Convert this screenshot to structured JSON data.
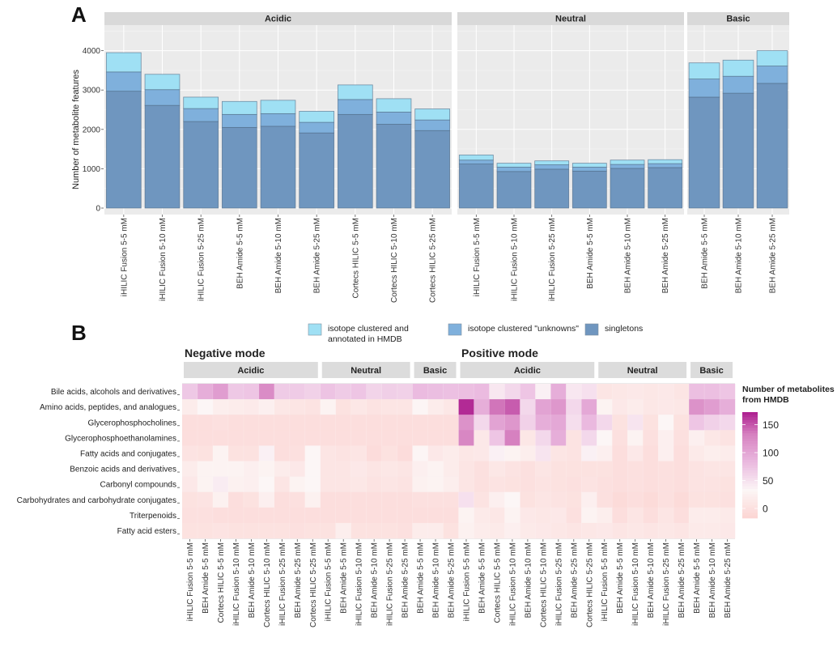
{
  "figure": {
    "panel_a_label": "A",
    "panel_b_label": "B"
  },
  "chart_data": [
    {
      "type": "bar",
      "stacked": true,
      "title": "",
      "ylabel": "Number of metabolite features",
      "xlabel": "",
      "ylim": [
        0,
        4600
      ],
      "yticks": [
        0,
        1000,
        2000,
        3000,
        4000
      ],
      "grid": true,
      "legend_position": "bottom",
      "legend": [
        {
          "key": "annotated",
          "label_lines": [
            "isotope clustered and",
            "annotated in HMDB"
          ],
          "color": "#9fe0f4"
        },
        {
          "key": "unknowns",
          "label_lines": [
            "isotope clustered \"unknowns\""
          ],
          "color": "#7fb0dc"
        },
        {
          "key": "singletons",
          "label_lines": [
            "singletons"
          ],
          "color": "#6f96bf"
        }
      ],
      "facets": [
        {
          "name": "Acidic",
          "categories": [
            "iHILIC Fusion 5-5 mM",
            "iHILIC Fusion 5-10 mM",
            "iHILIC Fusion 5-25 mM",
            "BEH Amide 5-5 mM",
            "BEH Amide 5-10 mM",
            "BEH Amide 5-25 mM",
            "Cortecs HILIC 5-5 mM",
            "Cortecs HILIC 5-10 mM",
            "Cortecs HILIC 5-25 mM"
          ],
          "singletons": [
            2970,
            2610,
            2200,
            2050,
            2080,
            1910,
            2380,
            2130,
            1970
          ],
          "unknowns": [
            490,
            400,
            330,
            330,
            320,
            270,
            380,
            310,
            270
          ],
          "annotated": [
            490,
            390,
            290,
            330,
            340,
            280,
            370,
            340,
            280
          ]
        },
        {
          "name": "Neutral",
          "categories": [
            "iHILIC Fusion 5-5 mM",
            "iHILIC Fusion 5-10 mM",
            "iHILIC Fusion 5-25 mM",
            "BEH Amide 5-5 mM",
            "BEH Amide 5-10 mM",
            "BEH Amide 5-25 mM"
          ],
          "singletons": [
            1120,
            930,
            990,
            940,
            1010,
            1030
          ],
          "unknowns": [
            100,
            110,
            110,
            100,
            100,
            100
          ],
          "annotated": [
            130,
            100,
            100,
            100,
            110,
            100
          ]
        },
        {
          "name": "Basic",
          "categories": [
            "BEH Amide 5-5 mM",
            "BEH Amide 5-10 mM",
            "BEH Amide 5-25 mM"
          ],
          "singletons": [
            2820,
            2920,
            3170
          ],
          "unknowns": [
            460,
            430,
            440
          ],
          "annotated": [
            410,
            410,
            390
          ]
        }
      ]
    },
    {
      "type": "heatmap",
      "title": "",
      "colorbar_title_lines": [
        "Number of metabolites",
        "from HMDB"
      ],
      "color_range": [
        0,
        190
      ],
      "colorbar_ticks": [
        0,
        50,
        100,
        150
      ],
      "color_stops": [
        {
          "v": 0,
          "c": "#fcd4d2"
        },
        {
          "v": 50,
          "c": "#fcf6f6"
        },
        {
          "v": 100,
          "c": "#eab9df"
        },
        {
          "v": 150,
          "c": "#d681c0"
        },
        {
          "v": 190,
          "c": "#ad1d8f"
        }
      ],
      "modes": [
        {
          "name": "Negative mode",
          "groups": [
            {
              "name": "Acidic",
              "n": 9
            },
            {
              "name": "Neutral",
              "n": 6
            },
            {
              "name": "Basic",
              "n": 3
            }
          ]
        },
        {
          "name": "Positive mode",
          "groups": [
            {
              "name": "Acidic",
              "n": 9
            },
            {
              "name": "Neutral",
              "n": 6
            },
            {
              "name": "Basic",
              "n": 3
            }
          ]
        }
      ],
      "columns": [
        "iHILIC Fusion 5-5 mM",
        "BEH Amide 5-5 mM",
        "Cortecs HILIC 5-5 mM",
        "iHILIC Fusion 5-10 mM",
        "BEH Amide 5-10 mM",
        "Cortecs HILIC 5-10 mM",
        "iHILIC Fusion 5-25 mM",
        "BEH Amide 5-25 mM",
        "Cortecs HILIC 5-25 mM",
        "iHILIC Fusion 5-5 mM",
        "BEH Amide 5-5 mM",
        "iHILIC Fusion 5-10 mM",
        "BEH Amide 5-10 mM",
        "iHILIC Fusion 5-25 mM",
        "BEH Amide 5-25 mM",
        "BEH Amide 5-5 mM",
        "BEH Amide 5-10 mM",
        "BEH Amide 5-25 mM",
        "iHILIC Fusion 5-5 mM",
        "BEH Amide 5-5 mM",
        "Cortecs HILIC 5-5 mM",
        "iHILIC Fusion 5-10 mM",
        "BEH Amide 5-10 mM",
        "Cortecs HILIC 5-10 mM",
        "iHILIC Fusion 5-25 mM",
        "BEH Amide 5-25 mM",
        "Cortecs HILIC 5-25 mM",
        "iHILIC Fusion 5-5 mM",
        "BEH Amide 5-5 mM",
        "iHILIC Fusion 5-10 mM",
        "BEH Amide 5-10 mM",
        "iHILIC Fusion 5-25 mM",
        "BEH Amide 5-25 mM",
        "BEH Amide 5-5 mM",
        "BEH Amide 5-10 mM",
        "BEH Amide 5-25 mM"
      ],
      "rows": [
        "Bile acids, alcohols and derivatives",
        "Amino acids, peptides, and analogues",
        "Glycerophosphocholines",
        "Glycerophosphoethanolamines",
        "Fatty acids and conjugates",
        "Benzoic acids and derivatives",
        "Carbonyl compounds",
        "Carbohydrates and carbohydrate conjugates",
        "Triterpenoids",
        "Fatty acid esters"
      ],
      "values": [
        [
          88,
          110,
          125,
          88,
          90,
          140,
          85,
          85,
          80,
          92,
          85,
          90,
          78,
          82,
          80,
          98,
          96,
          94,
          95,
          98,
          62,
          75,
          90,
          55,
          110,
          62,
          68,
          25,
          28,
          30,
          28,
          30,
          25,
          95,
          95,
          90
        ],
        [
          35,
          50,
          38,
          35,
          33,
          40,
          28,
          25,
          22,
          45,
          20,
          28,
          22,
          25,
          25,
          48,
          35,
          28,
          185,
          110,
          155,
          165,
          75,
          120,
          130,
          75,
          115,
          45,
          30,
          35,
          28,
          30,
          28,
          135,
          125,
          110
        ],
        [
          15,
          15,
          18,
          15,
          15,
          15,
          15,
          15,
          15,
          15,
          15,
          15,
          15,
          15,
          15,
          15,
          15,
          15,
          135,
          75,
          120,
          130,
          80,
          110,
          115,
          70,
          100,
          75,
          20,
          65,
          20,
          50,
          20,
          90,
          80,
          75
        ],
        [
          15,
          15,
          15,
          15,
          15,
          15,
          15,
          15,
          15,
          15,
          15,
          15,
          15,
          15,
          15,
          15,
          15,
          15,
          145,
          30,
          90,
          150,
          28,
          75,
          110,
          22,
          75,
          50,
          18,
          45,
          18,
          40,
          18,
          40,
          28,
          22
        ],
        [
          22,
          20,
          45,
          20,
          20,
          55,
          15,
          18,
          50,
          25,
          22,
          25,
          12,
          20,
          12,
          48,
          30,
          35,
          28,
          30,
          55,
          45,
          38,
          65,
          25,
          22,
          55,
          40,
          15,
          30,
          15,
          40,
          15,
          32,
          38,
          35
        ],
        [
          35,
          45,
          45,
          45,
          40,
          45,
          35,
          30,
          50,
          25,
          25,
          30,
          25,
          28,
          25,
          40,
          45,
          35,
          25,
          18,
          28,
          22,
          18,
          25,
          20,
          20,
          20,
          20,
          15,
          18,
          15,
          18,
          15,
          22,
          25,
          25
        ],
        [
          30,
          45,
          58,
          42,
          40,
          50,
          25,
          45,
          50,
          25,
          25,
          28,
          22,
          25,
          22,
          42,
          45,
          38,
          25,
          18,
          22,
          20,
          18,
          22,
          20,
          18,
          22,
          18,
          15,
          18,
          15,
          18,
          15,
          22,
          22,
          20
        ],
        [
          20,
          22,
          42,
          15,
          20,
          40,
          15,
          18,
          42,
          15,
          15,
          15,
          15,
          15,
          15,
          18,
          18,
          18,
          68,
          22,
          40,
          50,
          20,
          25,
          22,
          20,
          40,
          18,
          10,
          15,
          10,
          18,
          10,
          20,
          20,
          18
        ],
        [
          18,
          18,
          15,
          15,
          15,
          15,
          15,
          15,
          15,
          15,
          15,
          15,
          15,
          15,
          15,
          15,
          15,
          15,
          45,
          32,
          28,
          45,
          30,
          28,
          30,
          18,
          45,
          38,
          15,
          25,
          15,
          25,
          15,
          35,
          35,
          32
        ],
        [
          20,
          20,
          22,
          20,
          20,
          20,
          20,
          18,
          20,
          20,
          38,
          20,
          20,
          20,
          18,
          35,
          35,
          20,
          42,
          35,
          32,
          40,
          32,
          30,
          28,
          25,
          28,
          30,
          25,
          28,
          25,
          28,
          25,
          32,
          32,
          30
        ]
      ]
    }
  ]
}
